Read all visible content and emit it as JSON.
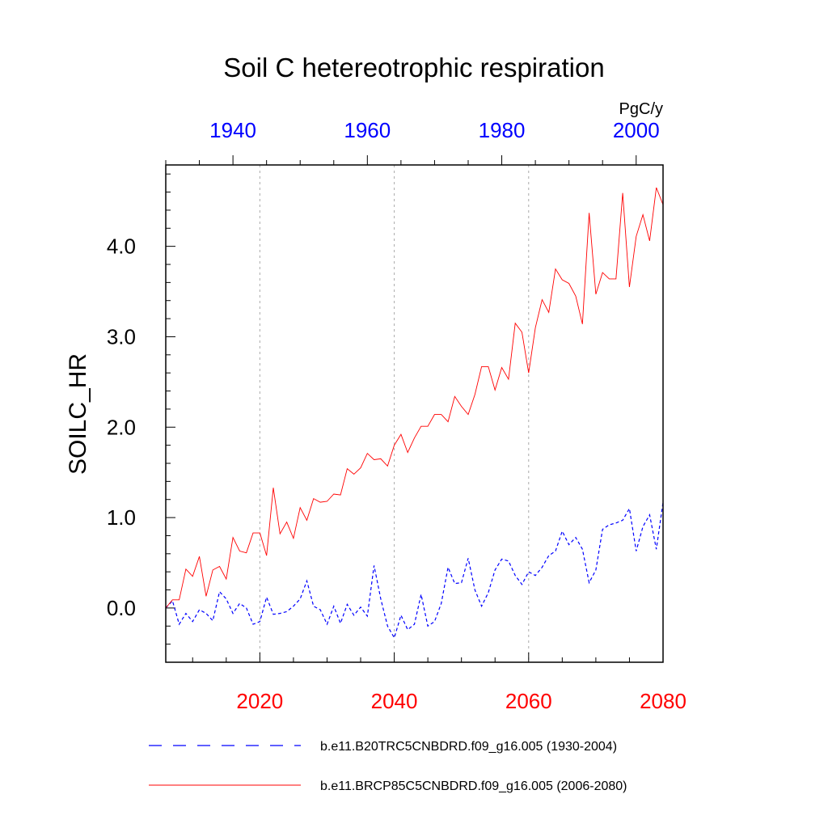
{
  "chart_data": {
    "type": "line",
    "title": "Soil C hetereotrophic respiration",
    "units": "PgC/y",
    "ylabel": "SOILC_HR",
    "ylim": [
      -0.6,
      4.9
    ],
    "yticks": [
      "0.0",
      "1.0",
      "2.0",
      "3.0",
      "4.0"
    ],
    "x_bottom": {
      "range": [
        2006,
        2080
      ],
      "ticks": [
        "2020",
        "2040",
        "2060",
        "2080"
      ],
      "color": "#ff0000"
    },
    "x_top": {
      "range": [
        1930,
        2004
      ],
      "ticks": [
        "1940",
        "1960",
        "1980",
        "2000"
      ],
      "color": "#0000ff"
    },
    "grid": "vertical-dotted",
    "legend_position": "bottom",
    "series": [
      {
        "name": "b.e11.B20TRC5CNBDRD.f09_g16.005 (1930-2004)",
        "axis": "top",
        "style": "dashed",
        "color": "#0000ff",
        "x_start": 1930,
        "values": [
          0.0,
          0.08,
          -0.18,
          -0.06,
          -0.15,
          -0.02,
          -0.06,
          -0.14,
          0.18,
          0.1,
          -0.06,
          0.05,
          0.0,
          -0.18,
          -0.15,
          0.12,
          -0.07,
          -0.06,
          -0.04,
          0.02,
          0.1,
          0.3,
          0.02,
          -0.02,
          -0.18,
          0.02,
          -0.17,
          0.04,
          -0.08,
          0.01,
          -0.09,
          0.47,
          0.1,
          -0.2,
          -0.33,
          -0.08,
          -0.24,
          -0.18,
          0.15,
          -0.2,
          -0.15,
          0.05,
          0.45,
          0.27,
          0.28,
          0.55,
          0.2,
          0.02,
          0.17,
          0.42,
          0.54,
          0.52,
          0.36,
          0.26,
          0.4,
          0.36,
          0.45,
          0.58,
          0.63,
          0.85,
          0.7,
          0.78,
          0.65,
          0.28,
          0.42,
          0.87,
          0.92,
          0.94,
          0.97,
          1.1,
          0.63,
          0.9,
          1.03,
          0.65,
          1.17
        ]
      },
      {
        "name": "b.e11.BRCP85C5CNBDRD.f09_g16.005 (2006-2080)",
        "axis": "bottom",
        "style": "solid",
        "color": "#ff0000",
        "x_start": 2006,
        "values": [
          0.0,
          0.09,
          0.09,
          0.43,
          0.35,
          0.57,
          0.13,
          0.42,
          0.46,
          0.32,
          0.78,
          0.63,
          0.61,
          0.83,
          0.83,
          0.58,
          1.33,
          0.82,
          0.95,
          0.77,
          1.11,
          0.97,
          1.21,
          1.17,
          1.18,
          1.26,
          1.25,
          1.54,
          1.48,
          1.55,
          1.71,
          1.64,
          1.65,
          1.57,
          1.8,
          1.92,
          1.72,
          1.88,
          2.01,
          2.01,
          2.14,
          2.14,
          2.06,
          2.34,
          2.23,
          2.14,
          2.36,
          2.67,
          2.67,
          2.41,
          2.66,
          2.53,
          3.15,
          3.05,
          2.6,
          3.1,
          3.41,
          3.27,
          3.75,
          3.63,
          3.59,
          3.45,
          3.14,
          4.37,
          3.47,
          3.71,
          3.64,
          3.64,
          4.59,
          3.55,
          4.11,
          4.35,
          4.06,
          4.65,
          4.46
        ]
      }
    ]
  }
}
